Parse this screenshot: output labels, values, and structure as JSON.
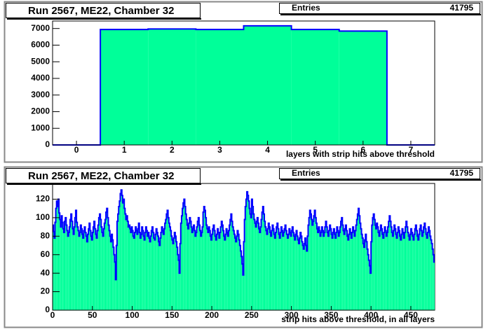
{
  "chart_data": [
    {
      "type": "histogram",
      "title": "Run 2567, ME22, Chamber 32",
      "stats": {
        "label": "Entries",
        "value": 41795
      },
      "x_label": "layers with strip hits above threshold",
      "bins": [
        -0.5,
        0.5,
        1.5,
        2.5,
        3.5,
        4.5,
        5.5,
        6.5,
        7.5
      ],
      "values": [
        0,
        6940,
        6970,
        6940,
        7160,
        6940,
        6845,
        0
      ],
      "color": "#00ff99",
      "line_color": "#0000ff",
      "xlim": [
        -0.5,
        7.5
      ],
      "xticks": [
        0,
        1,
        2,
        3,
        4,
        5,
        6,
        7
      ],
      "ylim": [
        0,
        7450
      ],
      "yticks": [
        0,
        1000,
        2000,
        3000,
        4000,
        5000,
        6000,
        7000
      ]
    },
    {
      "type": "histogram",
      "title": "Run 2567, ME22, Chamber 32",
      "stats": {
        "label": "Entries",
        "value": 41795
      },
      "x_label": "strip hits above threshold, in all layers",
      "bins": [
        0,
        1,
        2,
        3,
        4,
        5,
        6,
        7,
        8,
        9,
        10,
        11,
        12,
        13,
        14,
        15,
        16,
        17,
        18,
        19,
        20,
        21,
        22,
        23,
        24,
        25,
        26,
        27,
        28,
        29,
        30,
        31,
        32,
        33,
        34,
        35,
        36,
        37,
        38,
        39,
        40,
        41,
        42,
        43,
        44,
        45,
        46,
        47,
        48,
        49,
        50,
        51,
        52,
        53,
        54,
        55,
        56,
        57,
        58,
        59,
        60,
        61,
        62,
        63,
        64,
        65,
        66,
        67,
        68,
        69,
        70,
        71,
        72,
        73,
        74,
        75,
        76,
        77,
        78,
        79,
        80,
        81,
        82,
        83,
        84,
        85,
        86,
        87,
        88,
        89,
        90,
        91,
        92,
        93,
        94,
        95,
        96,
        97,
        98,
        99,
        100,
        101,
        102,
        103,
        104,
        105,
        106,
        107,
        108,
        109,
        110,
        111,
        112,
        113,
        114,
        115,
        116,
        117,
        118,
        119,
        120,
        121,
        122,
        123,
        124,
        125,
        126,
        127,
        128,
        129,
        130,
        131,
        132,
        133,
        134,
        135,
        136,
        137,
        138,
        139,
        140,
        141,
        142,
        143,
        144,
        145,
        146,
        147,
        148,
        149,
        150,
        151,
        152,
        153,
        154,
        155,
        156,
        157,
        158,
        159,
        160,
        161,
        162,
        163,
        164,
        165,
        166,
        167,
        168,
        169,
        170,
        171,
        172,
        173,
        174,
        175,
        176,
        177,
        178,
        179,
        180,
        181,
        182,
        183,
        184,
        185,
        186,
        187,
        188,
        189,
        190,
        191,
        192,
        193,
        194,
        195,
        196,
        197,
        198,
        199,
        200,
        201,
        202,
        203,
        204,
        205,
        206,
        207,
        208,
        209,
        210,
        211,
        212,
        213,
        214,
        215,
        216,
        217,
        218,
        219,
        220,
        221,
        222,
        223,
        224,
        225,
        226,
        227,
        228,
        229,
        230,
        231,
        232,
        233,
        234,
        235,
        236,
        237,
        238,
        239,
        240,
        241,
        242,
        243,
        244,
        245,
        246,
        247,
        248,
        249,
        250,
        251,
        252,
        253,
        254,
        255,
        256,
        257,
        258,
        259,
        260,
        261,
        262,
        263,
        264,
        265,
        266,
        267,
        268,
        269,
        270,
        271,
        272,
        273,
        274,
        275,
        276,
        277,
        278,
        279,
        280,
        281,
        282,
        283,
        284,
        285,
        286,
        287,
        288,
        289,
        290,
        291,
        292,
        293,
        294,
        295,
        296,
        297,
        298,
        299,
        300,
        301,
        302,
        303,
        304,
        305,
        306,
        307,
        308,
        309,
        310,
        311,
        312,
        313,
        314,
        315,
        316,
        317,
        318,
        319,
        320,
        321,
        322,
        323,
        324,
        325,
        326,
        327,
        328,
        329,
        330,
        331,
        332,
        333,
        334,
        335,
        336,
        337,
        338,
        339,
        340,
        341,
        342,
        343,
        344,
        345,
        346,
        347,
        348,
        349,
        350,
        351,
        352,
        353,
        354,
        355,
        356,
        357,
        358,
        359,
        360,
        361,
        362,
        363,
        364,
        365,
        366,
        367,
        368,
        369,
        370,
        371,
        372,
        373,
        374,
        375,
        376,
        377,
        378,
        379,
        380,
        381,
        382,
        383,
        384,
        385,
        386,
        387,
        388,
        389,
        390,
        391,
        392,
        393,
        394,
        395,
        396,
        397,
        398,
        399,
        400,
        401,
        402,
        403,
        404,
        405,
        406,
        407,
        408,
        409,
        410,
        411,
        412,
        413,
        414,
        415,
        416,
        417,
        418,
        419,
        420,
        421,
        422,
        423,
        424,
        425,
        426,
        427,
        428,
        429,
        430,
        431,
        432,
        433,
        434,
        435,
        436,
        437,
        438,
        439,
        440,
        441,
        442,
        443,
        444,
        445,
        446,
        447,
        448,
        449,
        450,
        451,
        452,
        453,
        454,
        455,
        456,
        457,
        458,
        459,
        460,
        461,
        462,
        463,
        464,
        465,
        466,
        467,
        468,
        469,
        470,
        471,
        472,
        473,
        474,
        475,
        476,
        477,
        478,
        479,
        480
      ],
      "values": [
        92,
        85,
        78,
        95,
        110,
        118,
        112,
        120,
        105,
        98,
        90,
        102,
        95,
        88,
        84,
        96,
        100,
        92,
        86,
        80,
        84,
        90,
        98,
        104,
        96,
        88,
        82,
        90,
        100,
        108,
        95,
        90,
        86,
        80,
        84,
        92,
        88,
        82,
        78,
        86,
        90,
        84,
        80,
        74,
        82,
        88,
        94,
        86,
        80,
        76,
        84,
        90,
        96,
        88,
        82,
        78,
        86,
        92,
        100,
        104,
        98,
        90,
        84,
        80,
        88,
        94,
        98,
        106,
        110,
        100,
        92,
        86,
        80,
        74,
        82,
        76,
        68,
        60,
        52,
        33,
        70,
        96,
        104,
        112,
        118,
        126,
        130,
        124,
        116,
        120,
        110,
        104,
        98,
        102,
        96,
        90,
        92,
        88,
        84,
        90,
        86,
        80,
        78,
        84,
        90,
        86,
        82,
        88,
        94,
        84,
        78,
        82,
        90,
        86,
        80,
        76,
        84,
        90,
        86,
        80,
        84,
        78,
        74,
        80,
        86,
        90,
        84,
        78,
        76,
        82,
        88,
        84,
        80,
        74,
        70,
        78,
        84,
        90,
        86,
        82,
        88,
        94,
        98,
        104,
        108,
        100,
        94,
        90,
        86,
        80,
        76,
        72,
        78,
        84,
        80,
        74,
        68,
        60,
        54,
        40,
        72,
        94,
        102,
        110,
        116,
        120,
        112,
        104,
        98,
        92,
        88,
        94,
        100,
        96,
        90,
        84,
        88,
        92,
        86,
        80,
        84,
        90,
        96,
        100,
        92,
        86,
        80,
        84,
        90,
        106,
        112,
        108,
        100,
        92,
        88,
        84,
        90,
        86,
        80,
        76,
        82,
        88,
        92,
        86,
        80,
        76,
        82,
        88,
        84,
        78,
        84,
        90,
        96,
        92,
        86,
        80,
        76,
        82,
        88,
        84,
        80,
        86,
        92,
        98,
        104,
        96,
        90,
        86,
        82,
        78,
        74,
        80,
        86,
        82,
        76,
        70,
        64,
        58,
        50,
        38,
        74,
        98,
        112,
        120,
        128,
        124,
        118,
        110,
        104,
        100,
        120,
        112,
        104,
        98,
        94,
        90,
        96,
        100,
        94,
        88,
        84,
        90,
        98,
        106,
        112,
        104,
        96,
        90,
        86,
        82,
        88,
        94,
        90,
        84,
        80,
        86,
        92,
        88,
        82,
        78,
        84,
        90,
        94,
        88,
        82,
        78,
        84,
        90,
        86,
        80,
        84,
        88,
        92,
        86,
        82,
        78,
        82,
        88,
        84,
        80,
        86,
        90,
        84,
        80,
        76,
        82,
        86,
        80,
        76,
        72,
        78,
        84,
        80,
        74,
        70,
        66,
        72,
        78,
        70,
        64,
        80,
        92,
        100,
        108,
        104,
        98,
        92,
        96,
        102,
        108,
        100,
        94,
        88,
        84,
        90,
        86,
        80,
        84,
        90,
        86,
        80,
        84,
        90,
        96,
        90,
        84,
        80,
        86,
        92,
        88,
        82,
        78,
        84,
        88,
        82,
        78,
        84,
        90,
        86,
        80,
        84,
        90,
        96,
        100,
        92,
        86,
        82,
        88,
        92,
        86,
        80,
        76,
        82,
        88,
        84,
        78,
        84,
        90,
        86,
        80,
        86,
        92,
        98,
        104,
        110,
        102,
        94,
        88,
        82,
        78,
        72,
        68,
        76,
        82,
        74,
        66,
        60,
        54,
        48,
        40,
        74,
        92,
        100,
        104,
        98,
        92,
        88,
        94,
        90,
        84,
        80,
        86,
        92,
        88,
        82,
        78,
        84,
        90,
        86,
        80,
        84,
        90,
        96,
        102,
        96,
        90,
        84,
        80,
        86,
        92,
        88,
        82,
        78,
        84,
        90,
        86,
        80,
        76,
        82,
        88,
        84,
        78,
        84,
        90,
        96,
        90,
        84,
        80,
        76,
        82,
        88,
        84,
        80,
        76,
        82,
        88,
        92,
        86,
        80,
        76,
        82,
        88,
        92,
        86,
        80,
        84,
        90,
        94,
        88,
        82,
        78,
        84,
        90,
        86,
        80,
        76,
        72,
        66,
        60,
        52
      ],
      "color": "#00ff99",
      "line_color": "#0000ff",
      "xlim": [
        0,
        480
      ],
      "xticks": [
        0,
        50,
        100,
        150,
        200,
        250,
        300,
        350,
        400,
        450
      ],
      "ylim": [
        0,
        137
      ],
      "yticks": [
        0,
        20,
        40,
        60,
        80,
        100,
        120
      ]
    }
  ]
}
